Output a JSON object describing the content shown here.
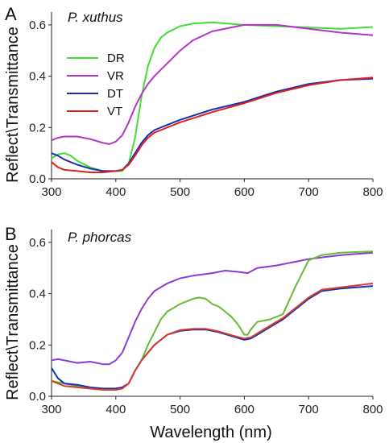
{
  "figure": {
    "ylabel": "Reflect\\Transmittance",
    "xlabel": "Wavelength (nm)"
  },
  "chart_data": [
    {
      "type": "line",
      "panel_letter": "A",
      "title": "P. xuthus",
      "xlim": [
        300,
        800
      ],
      "ylim": [
        0,
        0.65
      ],
      "xticks": [
        300,
        400,
        500,
        600,
        700,
        800
      ],
      "yticks": [
        0.0,
        0.2,
        0.4,
        0.6
      ],
      "legend_position": "upper-left",
      "series": [
        {
          "name": "DR",
          "color": "#44dd33",
          "x": [
            300,
            310,
            320,
            330,
            340,
            360,
            380,
            400,
            410,
            420,
            430,
            440,
            450,
            460,
            470,
            480,
            500,
            520,
            550,
            600,
            650,
            700,
            750,
            800
          ],
          "y": [
            0.08,
            0.095,
            0.1,
            0.09,
            0.07,
            0.045,
            0.03,
            0.03,
            0.03,
            0.06,
            0.16,
            0.32,
            0.44,
            0.51,
            0.55,
            0.57,
            0.595,
            0.605,
            0.61,
            0.6,
            0.595,
            0.59,
            0.585,
            0.592
          ]
        },
        {
          "name": "VR",
          "color": "#b534c8",
          "x": [
            300,
            310,
            320,
            340,
            360,
            380,
            390,
            400,
            410,
            420,
            430,
            440,
            450,
            460,
            480,
            500,
            520,
            550,
            600,
            650,
            700,
            750,
            800
          ],
          "y": [
            0.15,
            0.16,
            0.165,
            0.165,
            0.155,
            0.14,
            0.135,
            0.145,
            0.17,
            0.22,
            0.28,
            0.33,
            0.37,
            0.4,
            0.45,
            0.5,
            0.54,
            0.575,
            0.6,
            0.6,
            0.585,
            0.57,
            0.56
          ]
        },
        {
          "name": "DT",
          "color": "#1a2fb0",
          "x": [
            300,
            310,
            320,
            340,
            360,
            380,
            400,
            410,
            420,
            430,
            440,
            450,
            460,
            480,
            500,
            550,
            600,
            650,
            700,
            750,
            800
          ],
          "y": [
            0.1,
            0.09,
            0.075,
            0.055,
            0.04,
            0.03,
            0.03,
            0.035,
            0.06,
            0.1,
            0.14,
            0.17,
            0.19,
            0.21,
            0.23,
            0.27,
            0.3,
            0.34,
            0.37,
            0.385,
            0.39
          ]
        },
        {
          "name": "VT",
          "color": "#dd2020",
          "x": [
            300,
            310,
            320,
            340,
            360,
            380,
            400,
            410,
            420,
            430,
            440,
            450,
            460,
            480,
            500,
            550,
            600,
            650,
            700,
            750,
            800
          ],
          "y": [
            0.065,
            0.045,
            0.035,
            0.03,
            0.025,
            0.025,
            0.03,
            0.035,
            0.055,
            0.09,
            0.13,
            0.16,
            0.18,
            0.2,
            0.22,
            0.26,
            0.295,
            0.335,
            0.365,
            0.385,
            0.395
          ]
        }
      ]
    },
    {
      "type": "line",
      "panel_letter": "B",
      "title": "P. phorcas",
      "xlim": [
        300,
        800
      ],
      "ylim": [
        0,
        0.65
      ],
      "xticks": [
        300,
        400,
        500,
        600,
        700,
        800
      ],
      "yticks": [
        0.0,
        0.2,
        0.4,
        0.6
      ],
      "series": [
        {
          "color": "#8b3cd8",
          "x": [
            300,
            310,
            320,
            340,
            360,
            380,
            390,
            400,
            410,
            420,
            430,
            440,
            450,
            460,
            480,
            500,
            520,
            550,
            570,
            590,
            605,
            620,
            650,
            700,
            750,
            800
          ],
          "y": [
            0.14,
            0.145,
            0.14,
            0.13,
            0.135,
            0.125,
            0.125,
            0.14,
            0.17,
            0.23,
            0.29,
            0.34,
            0.38,
            0.41,
            0.44,
            0.46,
            0.47,
            0.48,
            0.49,
            0.485,
            0.48,
            0.5,
            0.51,
            0.535,
            0.55,
            0.56
          ]
        },
        {
          "color": "#66bb33",
          "x": [
            300,
            320,
            340,
            360,
            380,
            400,
            410,
            420,
            430,
            440,
            450,
            460,
            470,
            480,
            500,
            520,
            530,
            540,
            550,
            560,
            570,
            580,
            590,
            600,
            605,
            610,
            620,
            640,
            660,
            680,
            700,
            720,
            750,
            800
          ],
          "y": [
            0.06,
            0.05,
            0.04,
            0.03,
            0.025,
            0.025,
            0.03,
            0.05,
            0.1,
            0.14,
            0.2,
            0.25,
            0.3,
            0.33,
            0.36,
            0.38,
            0.385,
            0.38,
            0.36,
            0.35,
            0.33,
            0.31,
            0.28,
            0.24,
            0.24,
            0.26,
            0.29,
            0.3,
            0.32,
            0.43,
            0.53,
            0.55,
            0.56,
            0.565
          ]
        },
        {
          "color": "#1a2fb0",
          "x": [
            300,
            310,
            320,
            340,
            360,
            380,
            400,
            410,
            420,
            430,
            440,
            450,
            460,
            470,
            480,
            500,
            520,
            540,
            560,
            580,
            600,
            610,
            620,
            640,
            660,
            680,
            700,
            720,
            750,
            800
          ],
          "y": [
            0.11,
            0.07,
            0.05,
            0.045,
            0.035,
            0.03,
            0.03,
            0.035,
            0.05,
            0.1,
            0.14,
            0.17,
            0.2,
            0.22,
            0.24,
            0.255,
            0.26,
            0.26,
            0.25,
            0.235,
            0.22,
            0.225,
            0.24,
            0.27,
            0.3,
            0.34,
            0.38,
            0.41,
            0.42,
            0.43
          ]
        },
        {
          "color": "#d53d2c",
          "x": [
            300,
            310,
            320,
            340,
            360,
            380,
            400,
            410,
            420,
            430,
            440,
            450,
            460,
            470,
            480,
            500,
            520,
            540,
            560,
            580,
            600,
            610,
            620,
            640,
            660,
            680,
            700,
            720,
            750,
            800
          ],
          "y": [
            0.06,
            0.05,
            0.04,
            0.035,
            0.03,
            0.025,
            0.025,
            0.03,
            0.05,
            0.1,
            0.14,
            0.17,
            0.2,
            0.22,
            0.24,
            0.258,
            0.263,
            0.263,
            0.253,
            0.238,
            0.225,
            0.23,
            0.245,
            0.275,
            0.305,
            0.345,
            0.385,
            0.415,
            0.425,
            0.44
          ]
        }
      ]
    }
  ]
}
